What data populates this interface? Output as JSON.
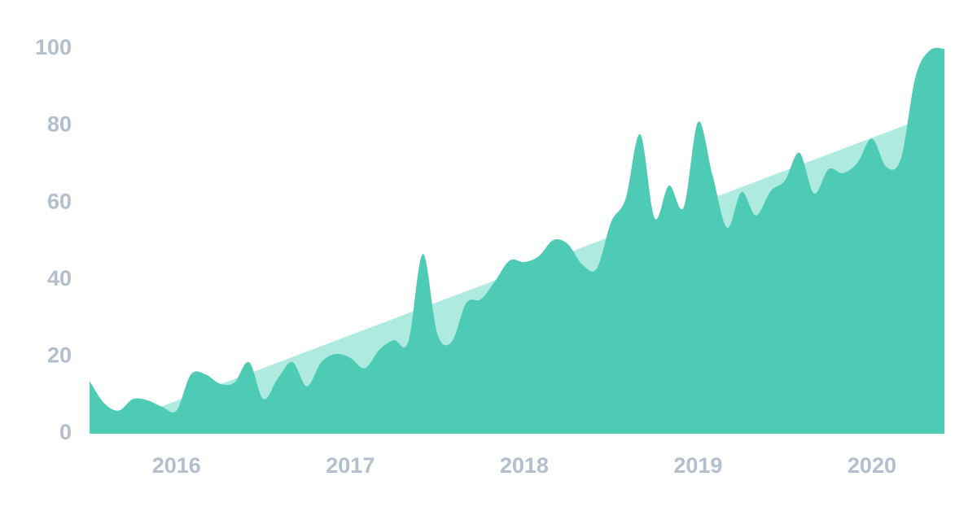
{
  "chart_data": {
    "type": "area",
    "x": [
      2015.5,
      2015.583,
      2015.667,
      2015.75,
      2015.833,
      2015.917,
      2016.0,
      2016.083,
      2016.167,
      2016.25,
      2016.333,
      2016.417,
      2016.5,
      2016.583,
      2016.667,
      2016.75,
      2016.833,
      2016.917,
      2017.0,
      2017.083,
      2017.167,
      2017.25,
      2017.333,
      2017.417,
      2017.5,
      2017.583,
      2017.667,
      2017.75,
      2017.833,
      2017.917,
      2018.0,
      2018.083,
      2018.167,
      2018.25,
      2018.333,
      2018.417,
      2018.5,
      2018.583,
      2018.667,
      2018.75,
      2018.833,
      2018.917,
      2019.0,
      2019.083,
      2019.167,
      2019.25,
      2019.333,
      2019.417,
      2019.5,
      2019.583,
      2019.667,
      2019.75,
      2019.833,
      2019.917,
      2020.0,
      2020.083,
      2020.167,
      2020.25,
      2020.333,
      2020.417
    ],
    "series": [
      {
        "color": "#aeeadf",
        "x": [
          2015.5,
          2020.417
        ],
        "values": [
          0,
          84
        ]
      },
      {
        "color": "#4ecbb4",
        "values": [
          13.7,
          8,
          6,
          9,
          8.7,
          7,
          6,
          15.4,
          15.4,
          13,
          13.3,
          18.6,
          9,
          14.4,
          18.6,
          12.3,
          18.6,
          20.7,
          19.7,
          17,
          21.8,
          24.3,
          23.9,
          46.7,
          26,
          23.9,
          34,
          34.9,
          39.7,
          45,
          44.6,
          46.1,
          50.3,
          49.3,
          44,
          42.9,
          55,
          61,
          77.8,
          56,
          64.5,
          58.8,
          81,
          67.2,
          53.5,
          62.8,
          56.7,
          63,
          65.8,
          73,
          62.4,
          68.7,
          67.7,
          70.4,
          76.7,
          69.3,
          71.5,
          92.6,
          99.6,
          100
        ]
      }
    ],
    "xlim": [
      2015.5,
      2020.417
    ],
    "xticks": [
      2016,
      2017,
      2018,
      2019,
      2020
    ],
    "ylim": [
      0,
      100
    ],
    "yticks": [
      0,
      20,
      40,
      60,
      80,
      100
    ]
  }
}
